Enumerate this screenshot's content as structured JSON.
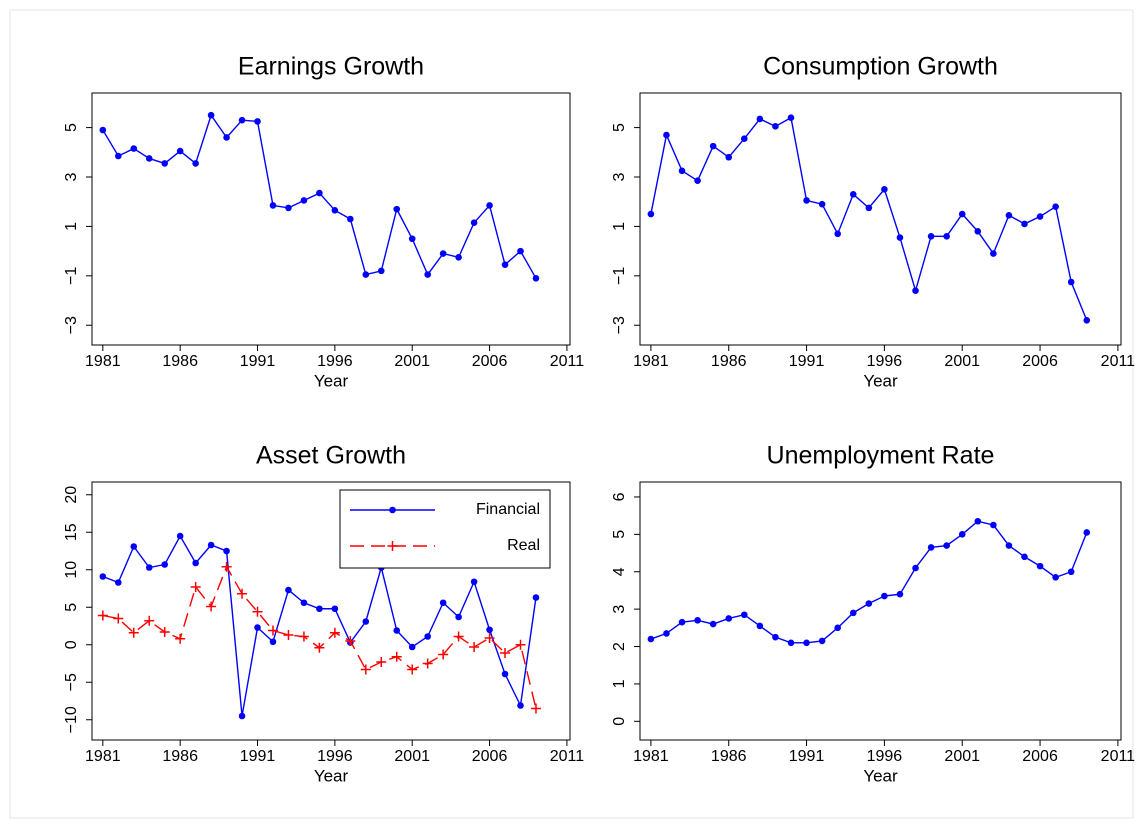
{
  "chart_data": [
    {
      "type": "line",
      "title": "Earnings Growth",
      "xlabel": "Year",
      "x": [
        1981,
        1982,
        1983,
        1984,
        1985,
        1986,
        1987,
        1988,
        1989,
        1990,
        1991,
        1992,
        1993,
        1994,
        1995,
        1996,
        1997,
        1998,
        1999,
        2000,
        2001,
        2002,
        2003,
        2004,
        2005,
        2006,
        2007,
        2008,
        2009
      ],
      "series": [
        {
          "name": "Earnings Growth",
          "color": "#0000ff",
          "marker": "dot",
          "dash": false,
          "values": [
            4.9,
            3.85,
            4.15,
            3.75,
            3.55,
            4.05,
            3.55,
            5.5,
            4.6,
            5.3,
            5.25,
            1.85,
            1.75,
            2.05,
            2.35,
            1.65,
            1.3,
            -0.95,
            -0.8,
            1.7,
            0.5,
            -0.95,
            -0.1,
            -0.25,
            1.15,
            1.85,
            -0.55,
            0.0,
            -1.1
          ]
        }
      ],
      "xlim": [
        1980.3,
        2011.2
      ],
      "xticks": [
        1981,
        1986,
        1991,
        1996,
        2001,
        2006,
        2011
      ],
      "ylim": [
        -3.8,
        6.4
      ],
      "yticks": [
        {
          "value": -3,
          "label": "−3"
        },
        {
          "value": -1,
          "label": "−1"
        },
        1,
        3,
        5
      ]
    },
    {
      "type": "line",
      "title": "Consumption Growth",
      "xlabel": "Year",
      "x": [
        1981,
        1982,
        1983,
        1984,
        1985,
        1986,
        1987,
        1988,
        1989,
        1990,
        1991,
        1992,
        1993,
        1994,
        1995,
        1996,
        1997,
        1998,
        1999,
        2000,
        2001,
        2002,
        2003,
        2004,
        2005,
        2006,
        2007,
        2008,
        2009
      ],
      "series": [
        {
          "name": "Consumption Growth",
          "color": "#0000ff",
          "marker": "dot",
          "dash": false,
          "values": [
            1.5,
            4.7,
            3.25,
            2.85,
            4.25,
            3.8,
            4.55,
            5.35,
            5.05,
            5.4,
            2.05,
            1.9,
            0.7,
            2.3,
            1.75,
            2.5,
            0.55,
            -1.6,
            0.6,
            0.6,
            1.5,
            0.8,
            -0.1,
            1.45,
            1.1,
            1.4,
            1.8,
            -1.25,
            -2.8
          ]
        }
      ],
      "xlim": [
        1980.3,
        2011.2
      ],
      "xticks": [
        1981,
        1986,
        1991,
        1996,
        2001,
        2006,
        2011
      ],
      "ylim": [
        -3.8,
        6.4
      ],
      "yticks": [
        {
          "value": -3,
          "label": "−3"
        },
        {
          "value": -1,
          "label": "−1"
        },
        1,
        3,
        5
      ]
    },
    {
      "type": "line",
      "title": "Asset Growth",
      "xlabel": "Year",
      "legend": "top-right",
      "x": [
        1981,
        1982,
        1983,
        1984,
        1985,
        1986,
        1987,
        1988,
        1989,
        1990,
        1991,
        1992,
        1993,
        1994,
        1995,
        1996,
        1997,
        1998,
        1999,
        2000,
        2001,
        2002,
        2003,
        2004,
        2005,
        2006,
        2007,
        2008,
        2009
      ],
      "series": [
        {
          "name": "Financial",
          "color": "#0000ff",
          "marker": "dot",
          "dash": false,
          "values": [
            9.1,
            8.3,
            13.1,
            10.3,
            10.7,
            14.5,
            10.9,
            13.3,
            12.5,
            -9.5,
            2.3,
            0.4,
            7.3,
            5.6,
            4.8,
            4.8,
            0.3,
            3.1,
            10.3,
            1.9,
            -0.3,
            1.1,
            5.6,
            3.7,
            8.4,
            2.0,
            -3.9,
            -8.1,
            6.3
          ]
        },
        {
          "name": "Real",
          "color": "#ff0000",
          "marker": "plus",
          "dash": true,
          "values": [
            3.9,
            3.5,
            1.6,
            3.2,
            1.7,
            0.8,
            7.7,
            5.1,
            10.4,
            6.8,
            4.4,
            1.9,
            1.3,
            1.1,
            -0.4,
            1.6,
            0.5,
            -3.3,
            -2.3,
            -1.6,
            -3.3,
            -2.5,
            -1.3,
            1.1,
            -0.3,
            0.9,
            -1.1,
            0.0,
            -8.5
          ]
        }
      ],
      "xlim": [
        1980.3,
        2011.2
      ],
      "xticks": [
        1981,
        1986,
        1991,
        1996,
        2001,
        2006,
        2011
      ],
      "ylim": [
        -12.7,
        21.7
      ],
      "yticks": [
        {
          "value": -10,
          "label": "−10"
        },
        {
          "value": -5,
          "label": "−5"
        },
        0,
        5,
        10,
        15,
        20
      ]
    },
    {
      "type": "line",
      "title": "Unemployment Rate",
      "xlabel": "Year",
      "x": [
        1981,
        1982,
        1983,
        1984,
        1985,
        1986,
        1987,
        1988,
        1989,
        1990,
        1991,
        1992,
        1993,
        1994,
        1995,
        1996,
        1997,
        1998,
        1999,
        2000,
        2001,
        2002,
        2003,
        2004,
        2005,
        2006,
        2007,
        2008,
        2009
      ],
      "series": [
        {
          "name": "Unemployment Rate",
          "color": "#0000ff",
          "marker": "dot",
          "dash": false,
          "values": [
            2.2,
            2.35,
            2.65,
            2.7,
            2.6,
            2.75,
            2.85,
            2.55,
            2.25,
            2.1,
            2.1,
            2.15,
            2.5,
            2.9,
            3.15,
            3.35,
            3.4,
            4.1,
            4.65,
            4.7,
            5.0,
            5.35,
            5.25,
            4.7,
            4.4,
            4.15,
            3.85,
            4.0,
            5.05
          ]
        }
      ],
      "xlim": [
        1980.3,
        2011.2
      ],
      "xticks": [
        1981,
        1986,
        1991,
        1996,
        2001,
        2006,
        2011
      ],
      "ylim": [
        -0.5,
        6.4
      ],
      "yticks": [
        0,
        1,
        2,
        3,
        4,
        5,
        6
      ]
    }
  ]
}
